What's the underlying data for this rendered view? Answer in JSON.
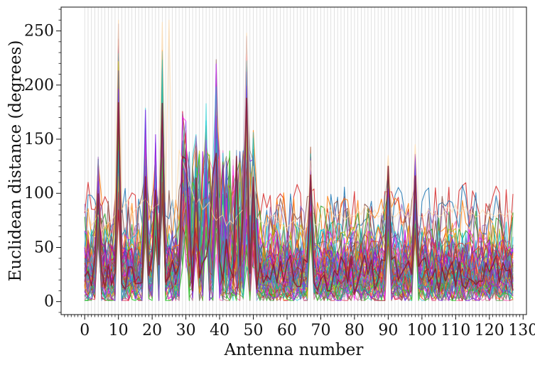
{
  "chart_data": {
    "type": "line",
    "title": "",
    "xlabel": "Antenna number",
    "ylabel": "Euclidean distance (degrees)",
    "xlim": [
      -7,
      131
    ],
    "ylim": [
      -12,
      272
    ],
    "x_ticks": [
      0,
      10,
      20,
      30,
      40,
      50,
      60,
      70,
      80,
      90,
      100,
      110,
      120,
      130
    ],
    "x_tick_labels": [
      "0",
      "10",
      "20",
      "30",
      "40",
      "50",
      "60",
      "70",
      "80",
      "90",
      "100",
      "110",
      "120",
      "130"
    ],
    "y_ticks": [
      0,
      50,
      100,
      150,
      200,
      250
    ],
    "y_tick_labels": [
      "0",
      "50",
      "100",
      "150",
      "200",
      "250"
    ],
    "grid": "vertical lines at every antenna",
    "legend": "none",
    "antenna_range": [
      0,
      127
    ],
    "series_colors": [
      "#d62728",
      "#1f77b4",
      "#ff7f0e",
      "#2ca02c",
      "#9467bd",
      "#8c564b",
      "#e377c2",
      "#7f7f7f",
      "#17becf",
      "#bcbd22",
      "#ff00ff",
      "#00ced1",
      "#9400d3",
      "#b22222",
      "#4682b4",
      "#ffa500",
      "#32cd32",
      "#8a2be2",
      "#a0522d",
      "#20b2aa",
      "#dc143c",
      "#6a5acd",
      "#ff69b4",
      "#556b2f"
    ],
    "series": [
      {
        "values": [
          84,
          83,
          70,
          75,
          80,
          65,
          70,
          72,
          75,
          80,
          260,
          85,
          90,
          95,
          80,
          85,
          88,
          92,
          95,
          90,
          85,
          88,
          90,
          258,
          92,
          260,
          88,
          85,
          140,
          130,
          120,
          110,
          100,
          90,
          95,
          85,
          88,
          92,
          80,
          75,
          78,
          80,
          70,
          75,
          72,
          78,
          82,
          85,
          248,
          80,
          125,
          78,
          75,
          72,
          70,
          78,
          80,
          75,
          72,
          70,
          68,
          72,
          75,
          70,
          68,
          65,
          70,
          130,
          72,
          70,
          75,
          88,
          80,
          85,
          78,
          80,
          82,
          75,
          78,
          80,
          78,
          85,
          80,
          88,
          82,
          80,
          85,
          78,
          80,
          88,
          135,
          80,
          78,
          82,
          85,
          80,
          78,
          80,
          145,
          80,
          78,
          80,
          85,
          80,
          82,
          78,
          80,
          85,
          88,
          82,
          90,
          80,
          85,
          88,
          80,
          82,
          78,
          80,
          85,
          80,
          82,
          80,
          78,
          82,
          80,
          78,
          85,
          78
        ]
      }
    ]
  }
}
